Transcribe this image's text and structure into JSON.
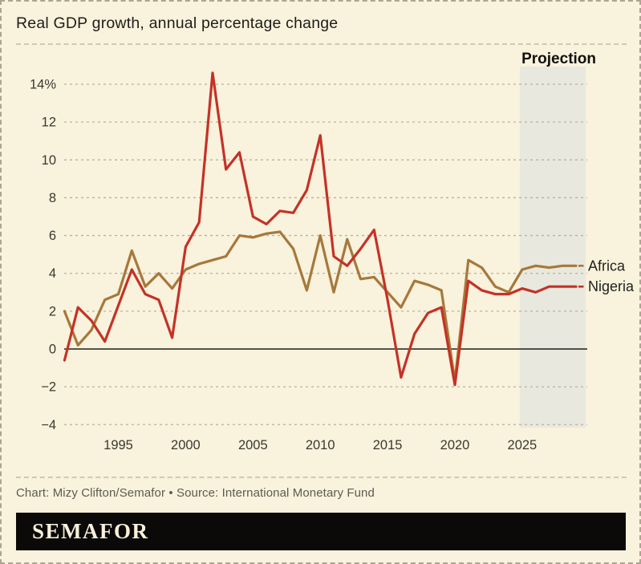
{
  "title": "Real GDP growth, annual percentage change",
  "footer": {
    "credit": "Chart: Mizy Clifton/Semafor • Source: International Monetary Fund",
    "logo_text": "SEMAFOR"
  },
  "colors": {
    "background": "#f9f2dc",
    "projection_band": "#e9e8de",
    "gridline": "#b7b1a0",
    "zero_axis": "#1d1c19",
    "africa_line": "#a6783c",
    "nigeria_line": "#c43227",
    "logo_bar": "#0b0a08",
    "logo_text": "#f7f0da"
  },
  "chart_data": {
    "type": "line",
    "title": "Real GDP growth, annual percentage change",
    "projection_label": "Projection",
    "projection_years": [
      2025,
      2029
    ],
    "grid": "horizontal dashed",
    "legend_position": "right of line ends",
    "ylim": [
      -4.6,
      15.3
    ],
    "xlim": [
      1991,
      2029
    ],
    "years": [
      1991,
      1992,
      1993,
      1994,
      1995,
      1996,
      1997,
      1998,
      1999,
      2000,
      2001,
      2002,
      2003,
      2004,
      2005,
      2006,
      2007,
      2008,
      2009,
      2010,
      2011,
      2012,
      2013,
      2014,
      2015,
      2016,
      2017,
      2018,
      2019,
      2020,
      2021,
      2022,
      2023,
      2024,
      2025,
      2026,
      2027,
      2028,
      2029
    ],
    "series": [
      {
        "name": "Africa",
        "color": "#a6783c",
        "values": [
          2.0,
          0.2,
          1.0,
          2.6,
          2.9,
          5.2,
          3.3,
          4.0,
          3.2,
          4.2,
          4.5,
          4.7,
          4.9,
          6.0,
          5.9,
          6.1,
          6.2,
          5.3,
          3.1,
          6.0,
          3.0,
          5.8,
          3.7,
          3.8,
          3.0,
          2.2,
          3.6,
          3.4,
          3.1,
          -1.7,
          4.7,
          4.3,
          3.3,
          3.0,
          4.2,
          4.4,
          4.3,
          4.4,
          4.4
        ]
      },
      {
        "name": "Nigeria",
        "color": "#c43227",
        "values": [
          -0.6,
          2.2,
          1.5,
          0.4,
          2.3,
          4.2,
          2.9,
          2.6,
          0.6,
          5.4,
          6.7,
          14.6,
          9.5,
          10.4,
          7.0,
          6.6,
          7.3,
          7.2,
          8.4,
          11.3,
          4.9,
          4.4,
          5.3,
          6.3,
          2.6,
          -1.5,
          0.8,
          1.9,
          2.2,
          -1.9,
          3.6,
          3.1,
          2.9,
          2.9,
          3.2,
          3.0,
          3.3,
          3.3,
          3.3
        ]
      }
    ],
    "y_ticks": [
      {
        "value": 14,
        "label": "14%"
      },
      {
        "value": 12,
        "label": "12"
      },
      {
        "value": 10,
        "label": "10"
      },
      {
        "value": 8,
        "label": "8"
      },
      {
        "value": 6,
        "label": "6"
      },
      {
        "value": 4,
        "label": "4"
      },
      {
        "value": 2,
        "label": "2"
      },
      {
        "value": 0,
        "label": "0"
      },
      {
        "value": -2,
        "label": "−2"
      },
      {
        "value": -4,
        "label": "−4"
      }
    ],
    "x_ticks": [
      {
        "value": 1995,
        "label": "1995"
      },
      {
        "value": 2000,
        "label": "2000"
      },
      {
        "value": 2005,
        "label": "2005"
      },
      {
        "value": 2010,
        "label": "2010"
      },
      {
        "value": 2015,
        "label": "2015"
      },
      {
        "value": 2020,
        "label": "2020"
      },
      {
        "value": 2025,
        "label": "2025"
      }
    ]
  }
}
